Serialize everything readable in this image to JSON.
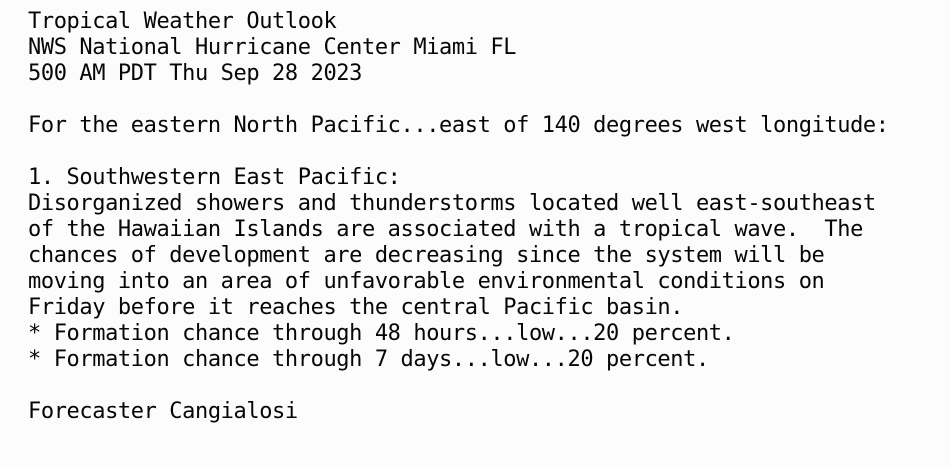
{
  "bulletin": {
    "header": {
      "product": "Tropical Weather Outlook",
      "office": "NWS National Hurricane Center Miami FL",
      "issued": "500 AM PDT Thu Sep 28 2023"
    },
    "scope": "For the eastern North Pacific...east of 140 degrees west longitude:",
    "section": {
      "heading": "1. Southwestern East Pacific:",
      "body": [
        "Disorganized showers and thunderstorms located well east-southeast",
        "of the Hawaiian Islands are associated with a tropical wave.  The",
        "chances of development are decreasing since the system will be",
        "moving into an area of unfavorable environmental conditions on",
        "Friday before it reaches the central Pacific basin."
      ],
      "bullets": [
        "* Formation chance through 48 hours...low...20 percent.",
        "* Formation chance through 7 days...low...20 percent."
      ]
    },
    "signature": "Forecaster Cangialosi"
  }
}
